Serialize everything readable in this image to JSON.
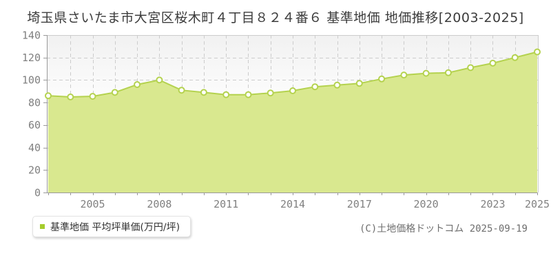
{
  "title": "埼玉県さいたま市大宮区桜木町４丁目８２４番６ 基準地価 地価推移[2003-2025]",
  "legend": {
    "label": "基準地価 平均坪単価(万円/坪)",
    "marker_color": "#a5cc2d"
  },
  "copyright": "(C)土地価格ドットコム 2025-09-19",
  "chart_data": {
    "type": "area",
    "title": "埼玉県さいたま市大宮区桜木町４丁目８２４番６ 基準地価 地価推移[2003-2025]",
    "series_name": "基準地価 平均坪単価(万円/坪)",
    "x": [
      2003,
      2004,
      2005,
      2006,
      2007,
      2008,
      2009,
      2010,
      2011,
      2012,
      2013,
      2014,
      2015,
      2016,
      2017,
      2018,
      2019,
      2020,
      2021,
      2022,
      2023,
      2024,
      2025
    ],
    "values": [
      86,
      85,
      85.5,
      89,
      96,
      100,
      91,
      89,
      87,
      87,
      88.5,
      90.5,
      94,
      95.5,
      97,
      101,
      104.5,
      106,
      106.5,
      111,
      115,
      120,
      125
    ],
    "xlabel": "",
    "ylabel": "",
    "ylim": [
      0,
      140
    ],
    "yticks": [
      "0",
      "20",
      "40",
      "60",
      "80",
      "100",
      "120",
      "140"
    ],
    "xtick_labels": [
      "2005",
      "2008",
      "2011",
      "2014",
      "2017",
      "2020",
      "2023",
      "2025"
    ],
    "grid": true,
    "legend_position": "bottom-left",
    "colors": {
      "area_fill": "#d9e88f",
      "line": "#b4d24e",
      "marker_fill": "#ffffff",
      "marker_stroke": "#b4d24e",
      "grid": "#cccccc",
      "axis": "#999999",
      "tick_text": "#808080",
      "plot_bg_top": "#f1f1f1",
      "plot_bg_bottom": "#ffffff"
    }
  }
}
